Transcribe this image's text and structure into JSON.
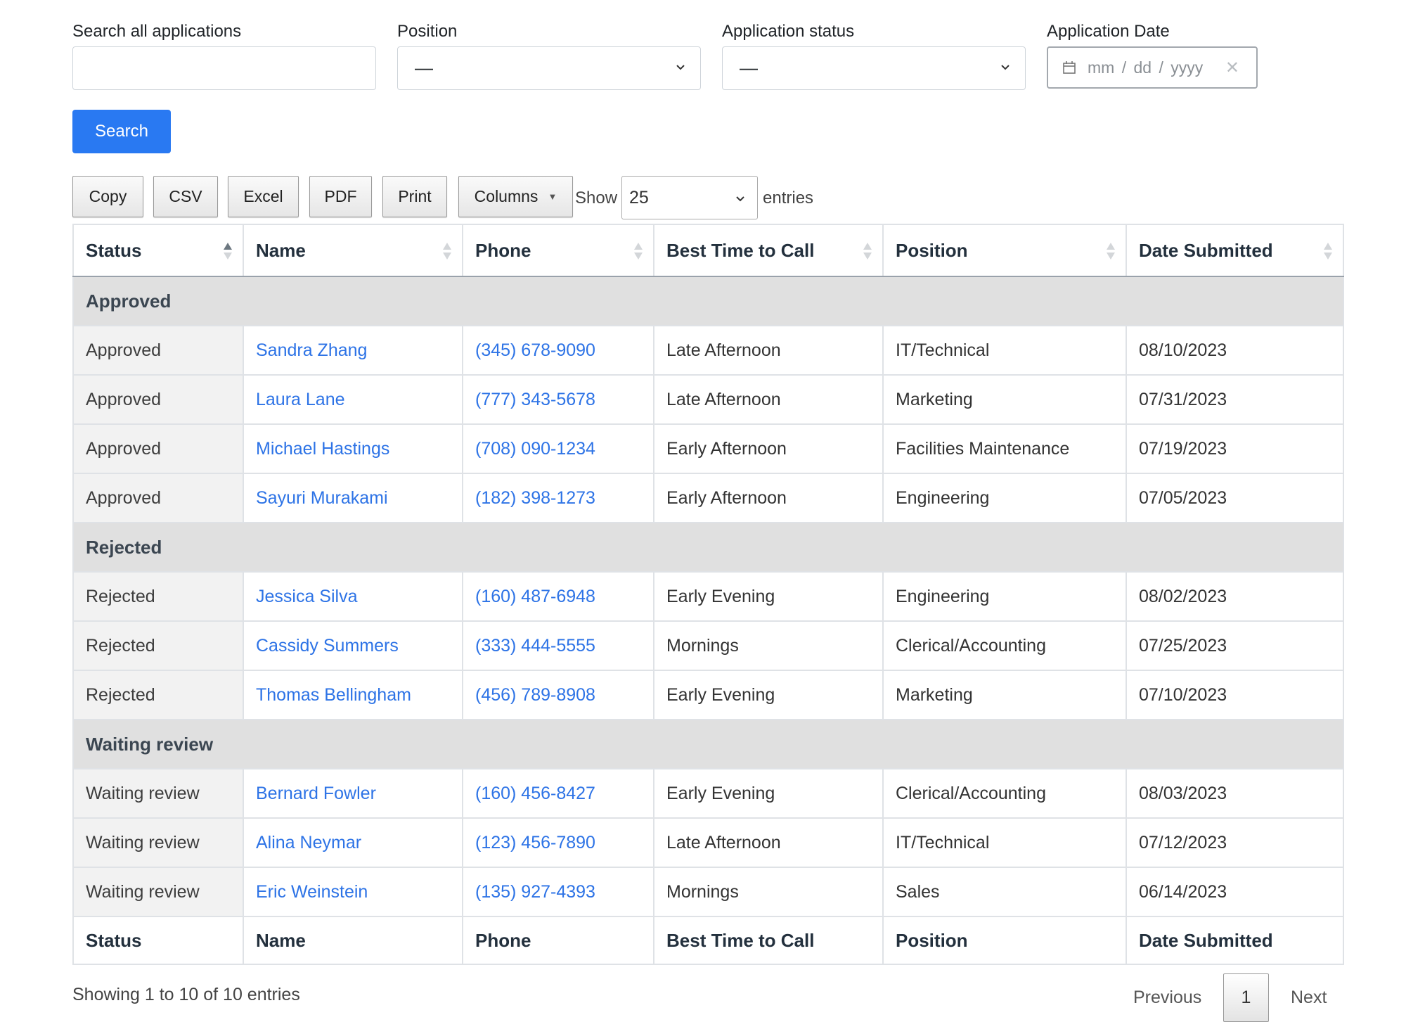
{
  "filters": {
    "search_label": "Search all applications",
    "search_value": "",
    "position_label": "Position",
    "position_value": "—",
    "status_label": "Application status",
    "status_value": "—",
    "date_label": "Application Date",
    "date_placeholder": "mm /  dd  /  yyyy",
    "search_button": "Search"
  },
  "toolbar": {
    "copy": "Copy",
    "csv": "CSV",
    "excel": "Excel",
    "pdf": "PDF",
    "print": "Print",
    "columns": "Columns",
    "show_label": "Show",
    "page_length": "25",
    "entries_label": "entries"
  },
  "table": {
    "headers": [
      "Status",
      "Name",
      "Phone",
      "Best Time to Call",
      "Position",
      "Date Submitted"
    ],
    "groups": [
      {
        "label": "Approved",
        "rows": [
          {
            "status": "Approved",
            "name": "Sandra Zhang",
            "phone": "(345) 678-9090",
            "time": "Late Afternoon",
            "position": "IT/Technical",
            "date": "08/10/2023"
          },
          {
            "status": "Approved",
            "name": "Laura Lane",
            "phone": "(777) 343-5678",
            "time": "Late Afternoon",
            "position": "Marketing",
            "date": "07/31/2023"
          },
          {
            "status": "Approved",
            "name": "Michael Hastings",
            "phone": "(708) 090-1234",
            "time": "Early Afternoon",
            "position": "Facilities Maintenance",
            "date": "07/19/2023"
          },
          {
            "status": "Approved",
            "name": "Sayuri Murakami",
            "phone": "(182) 398-1273",
            "time": "Early Afternoon",
            "position": "Engineering",
            "date": "07/05/2023"
          }
        ]
      },
      {
        "label": "Rejected",
        "rows": [
          {
            "status": "Rejected",
            "name": "Jessica Silva",
            "phone": "(160) 487-6948",
            "time": "Early Evening",
            "position": "Engineering",
            "date": "08/02/2023"
          },
          {
            "status": "Rejected",
            "name": "Cassidy Summers",
            "phone": "(333) 444-5555",
            "time": "Mornings",
            "position": "Clerical/Accounting",
            "date": "07/25/2023"
          },
          {
            "status": "Rejected",
            "name": "Thomas Bellingham",
            "phone": "(456) 789-8908",
            "time": "Early Evening",
            "position": "Marketing",
            "date": "07/10/2023"
          }
        ]
      },
      {
        "label": "Waiting review",
        "rows": [
          {
            "status": "Waiting review",
            "name": "Bernard Fowler",
            "phone": "(160) 456-8427",
            "time": "Early Evening",
            "position": "Clerical/Accounting",
            "date": "08/03/2023"
          },
          {
            "status": "Waiting review",
            "name": "Alina Neymar",
            "phone": "(123) 456-7890",
            "time": "Late Afternoon",
            "position": "IT/Technical",
            "date": "07/12/2023"
          },
          {
            "status": "Waiting review",
            "name": "Eric Weinstein",
            "phone": "(135) 927-4393",
            "time": "Mornings",
            "position": "Sales",
            "date": "06/14/2023"
          }
        ]
      }
    ]
  },
  "footer": {
    "info": "Showing 1 to 10 of 10 entries",
    "previous": "Previous",
    "current_page": "1",
    "next": "Next"
  },
  "colors": {
    "primary": "#2979f2",
    "link": "#2d73e6",
    "group_bg": "#e0e0e0"
  }
}
